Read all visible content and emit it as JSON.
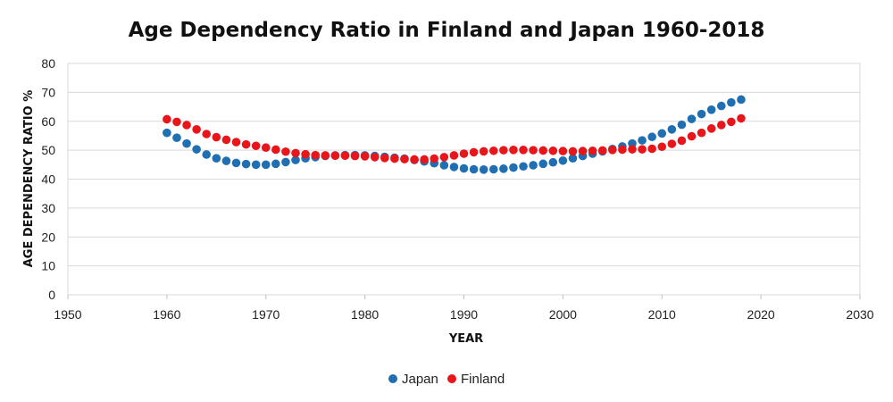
{
  "chart_data": {
    "type": "scatter",
    "title": "Age Dependency Ratio in Finland and Japan 1960-2018",
    "xlabel": "YEAR",
    "ylabel": "AGE DEPENDENCY RATIO %",
    "xlim": [
      1950,
      2030
    ],
    "ylim": [
      0,
      80
    ],
    "xticks": [
      1950,
      1960,
      1970,
      1980,
      1990,
      2000,
      2010,
      2020,
      2030
    ],
    "yticks": [
      0,
      10,
      20,
      30,
      40,
      50,
      60,
      70,
      80
    ],
    "grid": true,
    "legend_position": "bottom",
    "x": [
      1960,
      1961,
      1962,
      1963,
      1964,
      1965,
      1966,
      1967,
      1968,
      1969,
      1970,
      1971,
      1972,
      1973,
      1974,
      1975,
      1976,
      1977,
      1978,
      1979,
      1980,
      1981,
      1982,
      1983,
      1984,
      1985,
      1986,
      1987,
      1988,
      1989,
      1990,
      1991,
      1992,
      1993,
      1994,
      1995,
      1996,
      1997,
      1998,
      1999,
      2000,
      2001,
      2002,
      2003,
      2004,
      2005,
      2006,
      2007,
      2008,
      2009,
      2010,
      2011,
      2012,
      2013,
      2014,
      2015,
      2016,
      2017,
      2018
    ],
    "series": [
      {
        "name": "Japan",
        "color": "#1f6fb2",
        "values": [
          56.0,
          54.3,
          52.3,
          50.3,
          48.5,
          47.2,
          46.3,
          45.6,
          45.2,
          45.0,
          45.0,
          45.3,
          45.9,
          46.6,
          47.2,
          47.6,
          48.0,
          48.2,
          48.3,
          48.3,
          48.2,
          48.0,
          47.7,
          47.4,
          47.1,
          46.6,
          46.1,
          45.5,
          44.8,
          44.2,
          43.7,
          43.4,
          43.3,
          43.4,
          43.6,
          44.0,
          44.4,
          44.8,
          45.3,
          45.8,
          46.4,
          47.2,
          48.0,
          48.8,
          49.6,
          50.4,
          51.3,
          52.3,
          53.4,
          54.6,
          55.8,
          57.2,
          58.8,
          60.8,
          62.5,
          64.0,
          65.3,
          66.5,
          67.5
        ]
      },
      {
        "name": "Finland",
        "color": "#e8161b",
        "values": [
          60.7,
          59.8,
          58.7,
          57.2,
          55.6,
          54.5,
          53.6,
          52.8,
          52.0,
          51.5,
          50.9,
          50.2,
          49.5,
          49.0,
          48.6,
          48.3,
          48.2,
          48.1,
          48.1,
          48.0,
          47.9,
          47.6,
          47.3,
          47.1,
          46.9,
          46.8,
          46.8,
          47.1,
          47.6,
          48.2,
          48.8,
          49.3,
          49.6,
          49.8,
          50.0,
          50.1,
          50.1,
          50.0,
          49.9,
          49.8,
          49.7,
          49.6,
          49.7,
          49.8,
          49.9,
          50.1,
          50.2,
          50.3,
          50.3,
          50.5,
          51.2,
          52.2,
          53.3,
          54.8,
          56.0,
          57.5,
          58.7,
          59.8,
          61.0
        ]
      }
    ]
  }
}
